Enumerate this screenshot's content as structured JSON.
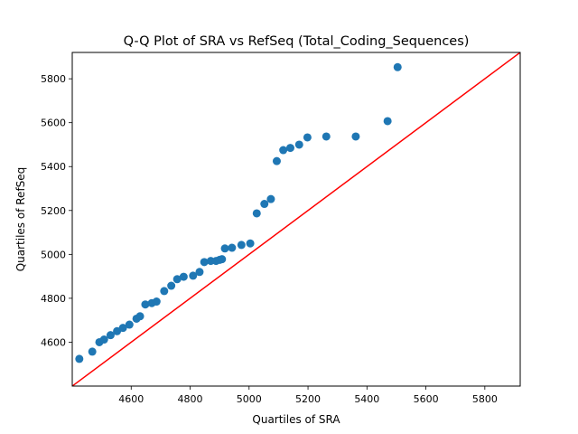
{
  "chart_data": {
    "type": "scatter",
    "title": "Q-Q Plot of SRA vs RefSeq (Total_Coding_Sequences)",
    "xlabel": "Quartiles of SRA",
    "ylabel": "Quartiles of RefSeq",
    "xlim": [
      4400,
      5920
    ],
    "ylim": [
      4400,
      5920
    ],
    "xticks": [
      4600,
      4800,
      5000,
      5200,
      5400,
      5600,
      5800
    ],
    "yticks": [
      4600,
      4800,
      5000,
      5200,
      5400,
      5600,
      5800
    ],
    "grid": false,
    "marker_color": "#1f77b4",
    "reference_line": {
      "color": "#ff0000",
      "x": [
        4400,
        5920
      ],
      "y": [
        4400,
        5920
      ]
    },
    "points": [
      {
        "x": 4424,
        "y": 4524
      },
      {
        "x": 4468,
        "y": 4557
      },
      {
        "x": 4492,
        "y": 4600
      },
      {
        "x": 4508,
        "y": 4612
      },
      {
        "x": 4530,
        "y": 4632
      },
      {
        "x": 4552,
        "y": 4650
      },
      {
        "x": 4572,
        "y": 4665
      },
      {
        "x": 4594,
        "y": 4680
      },
      {
        "x": 4618,
        "y": 4707
      },
      {
        "x": 4630,
        "y": 4718
      },
      {
        "x": 4648,
        "y": 4772
      },
      {
        "x": 4670,
        "y": 4778
      },
      {
        "x": 4686,
        "y": 4785
      },
      {
        "x": 4712,
        "y": 4833
      },
      {
        "x": 4736,
        "y": 4857
      },
      {
        "x": 4756,
        "y": 4887
      },
      {
        "x": 4778,
        "y": 4898
      },
      {
        "x": 4810,
        "y": 4903
      },
      {
        "x": 4832,
        "y": 4920
      },
      {
        "x": 4848,
        "y": 4965
      },
      {
        "x": 4870,
        "y": 4970
      },
      {
        "x": 4888,
        "y": 4970
      },
      {
        "x": 4900,
        "y": 4975
      },
      {
        "x": 4908,
        "y": 4978
      },
      {
        "x": 4918,
        "y": 5027
      },
      {
        "x": 4942,
        "y": 5030
      },
      {
        "x": 4974,
        "y": 5043
      },
      {
        "x": 5004,
        "y": 5050
      },
      {
        "x": 5026,
        "y": 5187
      },
      {
        "x": 5052,
        "y": 5230
      },
      {
        "x": 5074,
        "y": 5252
      },
      {
        "x": 5094,
        "y": 5425
      },
      {
        "x": 5116,
        "y": 5475
      },
      {
        "x": 5140,
        "y": 5485
      },
      {
        "x": 5170,
        "y": 5500
      },
      {
        "x": 5198,
        "y": 5533
      },
      {
        "x": 5262,
        "y": 5537
      },
      {
        "x": 5362,
        "y": 5537
      },
      {
        "x": 5470,
        "y": 5607
      },
      {
        "x": 5504,
        "y": 5853
      }
    ]
  }
}
